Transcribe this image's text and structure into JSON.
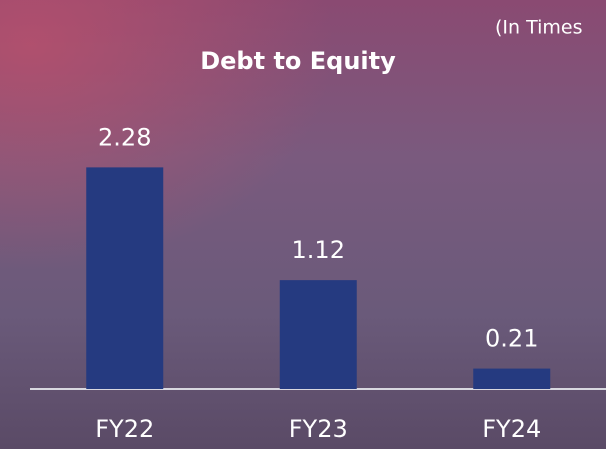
{
  "chart_data": {
    "type": "bar",
    "title": "Debt to Equity",
    "note": "(In Times",
    "categories": [
      "FY22",
      "FY23",
      "FY24"
    ],
    "values": [
      2.28,
      1.12,
      0.21
    ],
    "color": "#253a80",
    "ylim": [
      0,
      2.5
    ]
  }
}
